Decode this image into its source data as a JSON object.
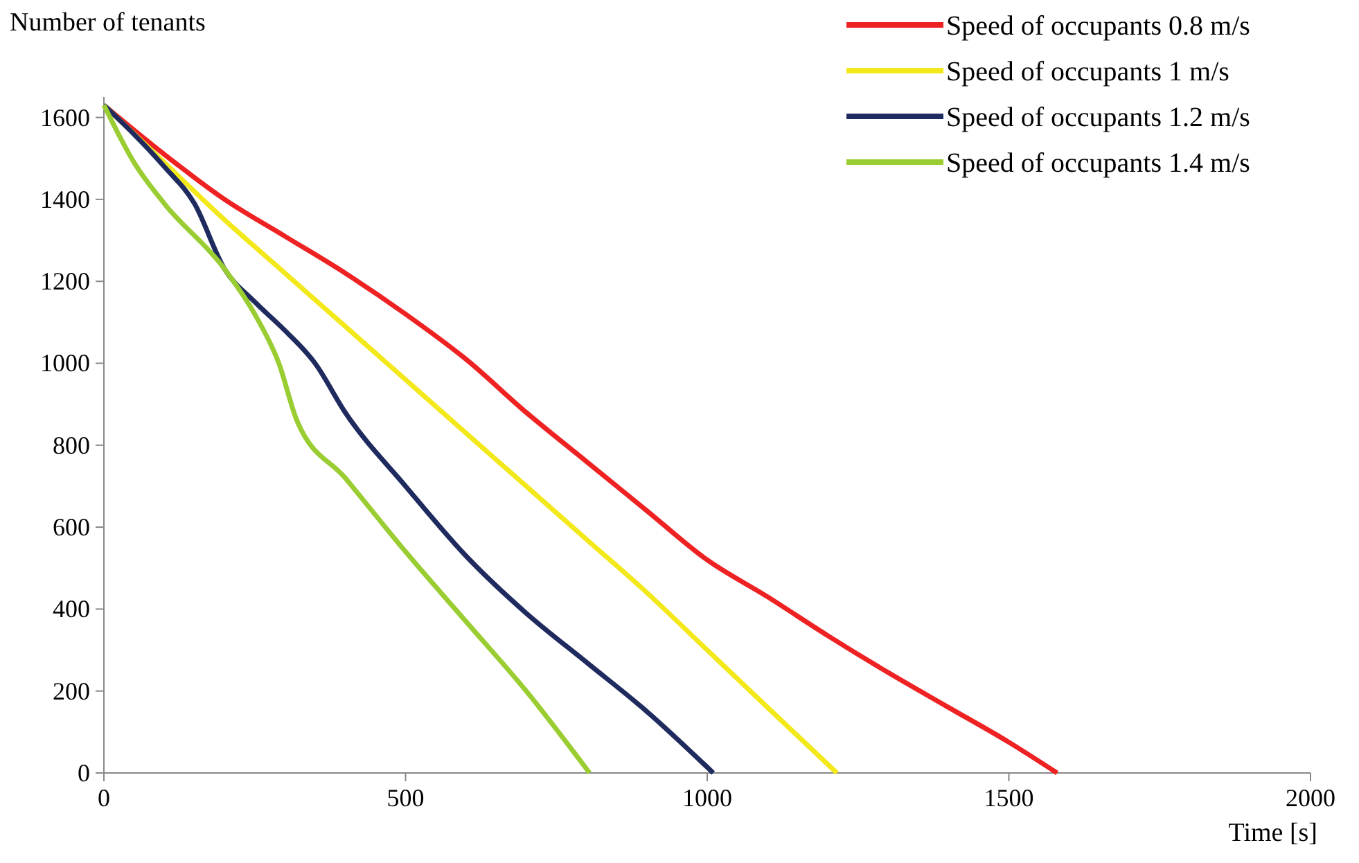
{
  "chart_data": {
    "type": "line",
    "xlabel": "Time [s]",
    "ylabel": "Number of tenants",
    "xlim": [
      0,
      2000
    ],
    "xticks": [
      0,
      500,
      1000,
      1500,
      2000
    ],
    "ylim": [
      0,
      1650
    ],
    "yticks": [
      0,
      200,
      400,
      600,
      800,
      1000,
      1200,
      1400,
      1600
    ],
    "legend": "top right",
    "grid": false,
    "marker": "none",
    "line_style": "solid",
    "series": [
      {
        "name": "Speed of occupants 0.8 m/s",
        "color": "#ee2222",
        "x": [
          0,
          100,
          200,
          300,
          400,
          500,
          600,
          700,
          800,
          900,
          1000,
          1100,
          1200,
          1300,
          1400,
          1500,
          1580
        ],
        "values": [
          1630,
          1510,
          1400,
          1310,
          1220,
          1120,
          1010,
          880,
          760,
          640,
          520,
          430,
          335,
          245,
          160,
          75,
          0
        ]
      },
      {
        "name": "Speed of occupants 1 m/s",
        "color": "#f2e81a",
        "x": [
          0,
          100,
          200,
          300,
          400,
          500,
          600,
          700,
          800,
          900,
          1000,
          1100,
          1215
        ],
        "values": [
          1630,
          1490,
          1350,
          1220,
          1090,
          960,
          830,
          700,
          570,
          440,
          300,
          160,
          0
        ]
      },
      {
        "name": "Speed of occupants 1.2 m/s",
        "color": "#1f2a5e",
        "x": [
          0,
          100,
          150,
          200,
          250,
          300,
          350,
          400,
          500,
          600,
          700,
          800,
          900,
          1010
        ],
        "values": [
          1630,
          1480,
          1390,
          1230,
          1150,
          1080,
          1000,
          880,
          700,
          530,
          390,
          270,
          150,
          0
        ]
      },
      {
        "name": "Speed of occupants 1.4 m/s",
        "color": "#9acd32",
        "x": [
          0,
          50,
          100,
          200,
          250,
          290,
          320,
          400,
          500,
          600,
          700,
          805
        ],
        "values": [
          1630,
          1490,
          1390,
          1230,
          1120,
          1000,
          860,
          720,
          540,
          370,
          200,
          0
        ]
      }
    ]
  }
}
